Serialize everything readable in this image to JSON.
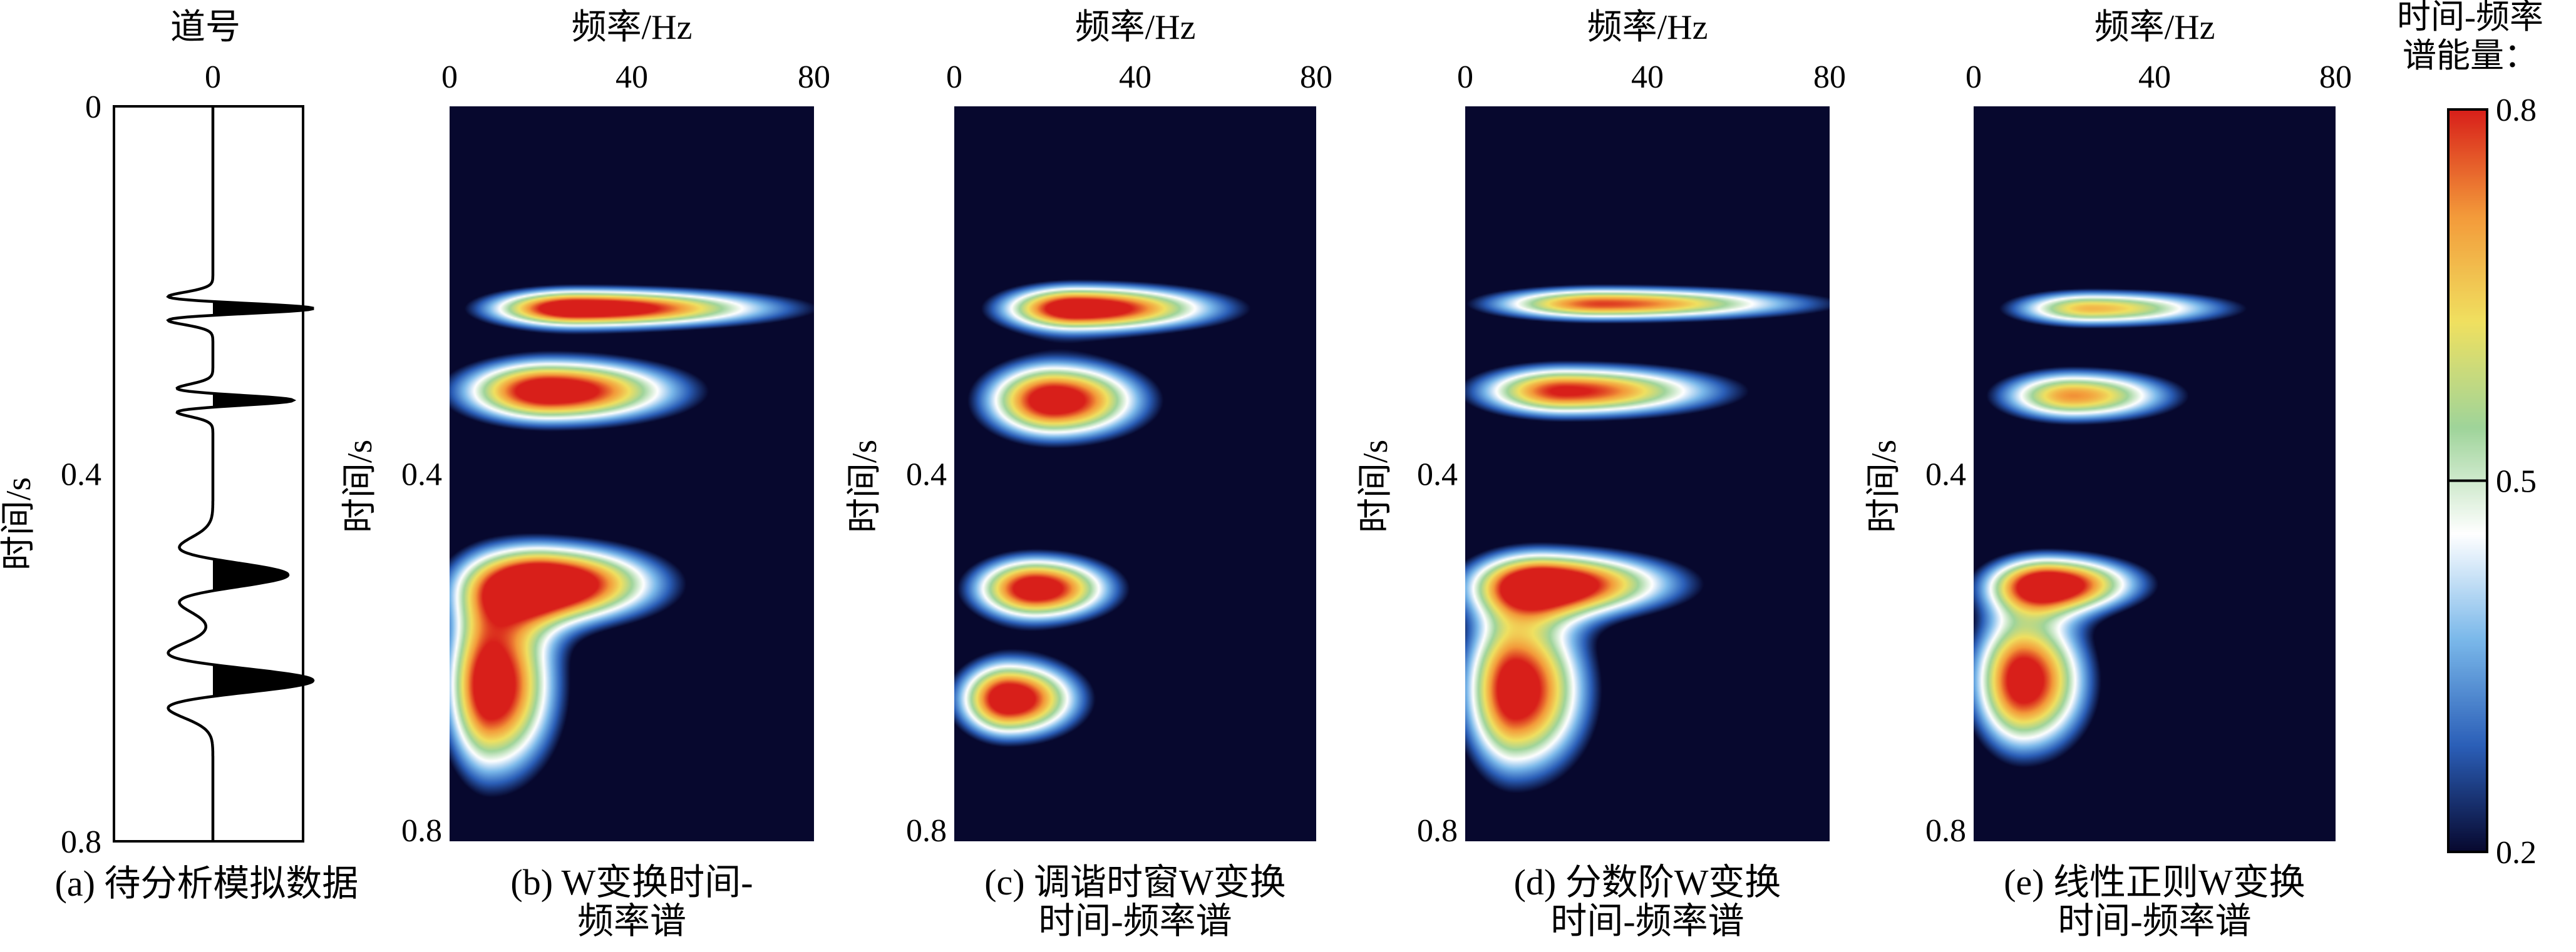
{
  "chart_data": [
    {
      "type": "line",
      "panel": "a",
      "caption": "(a) 待分析模拟数据",
      "xlabel": "道号",
      "ylabel": "时间/s",
      "x_ticks": [
        "0"
      ],
      "y_ticks": [
        "0",
        "0.4",
        "0.8"
      ],
      "ylim": [
        0,
        0.8
      ],
      "events": [
        {
          "time": 0.22,
          "amplitude": 1.0
        },
        {
          "time": 0.32,
          "amplitude": 0.8
        },
        {
          "time": 0.51,
          "amplitude": 0.75
        },
        {
          "time": 0.625,
          "amplitude": 1.0
        }
      ]
    },
    {
      "type": "heatmap",
      "panel": "b",
      "caption": [
        "(b) W变换时间-",
        "频率谱"
      ],
      "xlabel": "频率/Hz",
      "ylabel": "时间/s",
      "x_ticks": [
        "0",
        "40",
        "80"
      ],
      "y_ticks": [
        "0.4",
        "0.8"
      ],
      "xlim": [
        0,
        80
      ],
      "ylim": [
        0,
        0.8
      ],
      "blobs": [
        {
          "t": 0.22,
          "f": 28,
          "sf_lo": 14,
          "sf_hi": 30,
          "st": 0.015,
          "a": 0.95
        },
        {
          "t": 0.31,
          "f": 22,
          "sf_lo": 14,
          "sf_hi": 20,
          "st": 0.025,
          "a": 0.92
        },
        {
          "t": 0.52,
          "f": 22,
          "sf_lo": 13,
          "sf_hi": 17,
          "st": 0.03,
          "a": 0.95
        },
        {
          "t": 0.63,
          "f": 9,
          "sf_lo": 7,
          "sf_hi": 10,
          "st": 0.07,
          "a": 0.92
        }
      ]
    },
    {
      "type": "heatmap",
      "panel": "c",
      "caption": [
        "(c) 调谐时窗W变换",
        "时间-频率谱"
      ],
      "xlabel": "频率/Hz",
      "ylabel": "时间/s",
      "x_ticks": [
        "0",
        "40",
        "80"
      ],
      "y_ticks": [
        "0.4",
        "0.8"
      ],
      "xlim": [
        0,
        80
      ],
      "ylim": [
        0,
        0.8
      ],
      "blobs": [
        {
          "t": 0.22,
          "f": 27,
          "sf_lo": 12,
          "sf_hi": 22,
          "st": 0.018,
          "a": 0.93
        },
        {
          "t": 0.32,
          "f": 22,
          "sf_lo": 11,
          "sf_hi": 14,
          "st": 0.03,
          "a": 0.9
        },
        {
          "t": 0.525,
          "f": 18,
          "sf_lo": 10,
          "sf_hi": 12,
          "st": 0.025,
          "a": 0.9
        },
        {
          "t": 0.645,
          "f": 12,
          "sf_lo": 8,
          "sf_hi": 11,
          "st": 0.03,
          "a": 0.92
        }
      ]
    },
    {
      "type": "heatmap",
      "panel": "d",
      "caption": [
        "(d) 分数阶W变换",
        "时间-频率谱"
      ],
      "xlabel": "频率/Hz",
      "ylabel": "时间/s",
      "x_ticks": [
        "0",
        "40",
        "80"
      ],
      "y_ticks": [
        "0.4",
        "0.8"
      ],
      "xlim": [
        0,
        80
      ],
      "ylim": [
        0,
        0.8
      ],
      "blobs": [
        {
          "t": 0.215,
          "f": 30,
          "sf_lo": 18,
          "sf_hi": 32,
          "st": 0.013,
          "a": 0.78
        },
        {
          "t": 0.31,
          "f": 22,
          "sf_lo": 14,
          "sf_hi": 24,
          "st": 0.02,
          "a": 0.82
        },
        {
          "t": 0.52,
          "f": 18,
          "sf_lo": 12,
          "sf_hi": 20,
          "st": 0.025,
          "a": 0.88
        },
        {
          "t": 0.635,
          "f": 11,
          "sf_lo": 8,
          "sf_hi": 11,
          "st": 0.065,
          "a": 0.9
        }
      ]
    },
    {
      "type": "heatmap",
      "panel": "e",
      "caption": [
        "(e) 线性正则W变换",
        "时间-频率谱"
      ],
      "xlabel": "频率/Hz",
      "ylabel": "时间/s",
      "x_ticks": [
        "0",
        "40",
        "80"
      ],
      "y_ticks": [
        "0.4",
        "0.8"
      ],
      "xlim": [
        0,
        80
      ],
      "ylim": [
        0,
        0.8
      ],
      "blobs": [
        {
          "t": 0.22,
          "f": 26,
          "sf_lo": 13,
          "sf_hi": 22,
          "st": 0.014,
          "a": 0.68
        },
        {
          "t": 0.315,
          "f": 22,
          "sf_lo": 12,
          "sf_hi": 16,
          "st": 0.02,
          "a": 0.72
        },
        {
          "t": 0.52,
          "f": 17,
          "sf_lo": 10,
          "sf_hi": 14,
          "st": 0.022,
          "a": 0.85
        },
        {
          "t": 0.625,
          "f": 11,
          "sf_lo": 8,
          "sf_hi": 10,
          "st": 0.055,
          "a": 0.88
        }
      ]
    }
  ],
  "colorbar": {
    "title": [
      "时间-频率",
      "谱能量："
    ],
    "ticks": [
      "0.8",
      "0.5",
      "0.2"
    ],
    "range": [
      0.2,
      0.8
    ],
    "marker_value": 0.5,
    "colors": [
      "#07082e",
      "#2b5fb8",
      "#7ab8ea",
      "#ffffff",
      "#9fd49a",
      "#f0e060",
      "#f39a3a",
      "#d81f1a"
    ]
  }
}
